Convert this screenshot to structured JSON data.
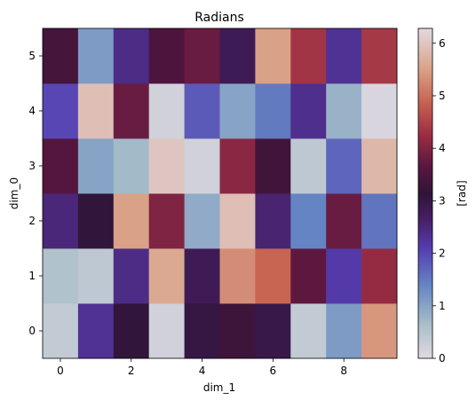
{
  "chart_data": {
    "type": "heatmap",
    "title": "Radians",
    "xlabel": "dim_1",
    "ylabel": "dim_0",
    "colorbar_label": "[rad]",
    "colormap": "twilight",
    "vmin": 0,
    "vmax": 6.283,
    "x_values": [
      0,
      1,
      2,
      3,
      4,
      5,
      6,
      7,
      8,
      9
    ],
    "y_values": [
      0,
      1,
      2,
      3,
      4,
      5
    ],
    "x_ticks": [
      "0",
      "2",
      "4",
      "6",
      "8"
    ],
    "y_ticks": [
      "0",
      "1",
      "2",
      "3",
      "4",
      "5"
    ],
    "colorbar_ticks": [
      "0",
      "1",
      "2",
      "3",
      "4",
      "5",
      "6"
    ],
    "values": [
      [
        0.35,
        2.3,
        3.1,
        0.2,
        3.0,
        3.3,
        2.95,
        0.35,
        1.1,
        5.4
      ],
      [
        0.55,
        0.4,
        2.4,
        5.6,
        2.8,
        5.3,
        4.9,
        3.7,
        2.15,
        4.2
      ],
      [
        2.5,
        3.1,
        5.5,
        4.0,
        0.9,
        5.9,
        2.55,
        1.4,
        3.8,
        1.55
      ],
      [
        3.6,
        1.0,
        0.7,
        6.0,
        0.2,
        4.1,
        3.35,
        0.4,
        1.7,
        5.8
      ],
      [
        2.0,
        5.9,
        3.8,
        0.2,
        1.8,
        1.0,
        1.5,
        2.35,
        0.8,
        0.1
      ],
      [
        3.4,
        1.1,
        2.4,
        3.5,
        3.8,
        2.8,
        5.5,
        4.35,
        2.3,
        4.4
      ]
    ]
  }
}
